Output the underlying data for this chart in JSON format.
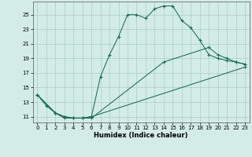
{
  "bg_color": "#d4ece6",
  "grid_color": "#a8cdc6",
  "line_color": "#1a6b58",
  "xlabel": "Humidex (Indice chaleur)",
  "xlim_min": -0.5,
  "xlim_max": 23.5,
  "ylim_min": 10.2,
  "ylim_max": 26.8,
  "yticks": [
    11,
    13,
    15,
    17,
    19,
    21,
    23,
    25
  ],
  "xticks": [
    0,
    1,
    2,
    3,
    4,
    5,
    6,
    7,
    8,
    9,
    10,
    11,
    12,
    13,
    14,
    15,
    16,
    17,
    18,
    19,
    20,
    21,
    22,
    23
  ],
  "line1_x": [
    0,
    1,
    2,
    3,
    4,
    5,
    6,
    7,
    8,
    9,
    10,
    11,
    12,
    13,
    14,
    15,
    16,
    17,
    18,
    19,
    20,
    21,
    22,
    23
  ],
  "line1_y": [
    14.0,
    12.5,
    11.5,
    10.8,
    10.8,
    10.8,
    11.0,
    16.5,
    19.5,
    22.0,
    25.0,
    25.0,
    24.5,
    25.8,
    26.2,
    26.2,
    24.2,
    23.2,
    21.5,
    19.5,
    19.0,
    18.7,
    18.5,
    18.2
  ],
  "line2_x": [
    0,
    2,
    3,
    4,
    5,
    6,
    14,
    19,
    20,
    21,
    22,
    23
  ],
  "line2_y": [
    14.0,
    11.5,
    11.0,
    10.8,
    10.8,
    10.8,
    18.5,
    20.5,
    19.5,
    19.0,
    18.5,
    18.2
  ],
  "line3_x": [
    0,
    2,
    3,
    4,
    5,
    6,
    23
  ],
  "line3_y": [
    14.0,
    11.5,
    11.0,
    10.8,
    10.8,
    11.0,
    17.8
  ]
}
